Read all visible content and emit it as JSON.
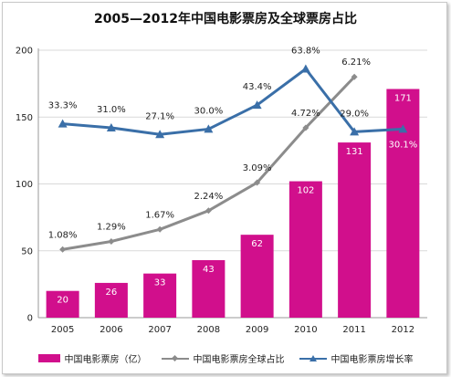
{
  "chart_data": {
    "type": "bar",
    "title": "2005—2012年中国电影票房及全球票房占比",
    "categories": [
      "2005",
      "2006",
      "2007",
      "2008",
      "2009",
      "2010",
      "2011",
      "2012"
    ],
    "ylim": [
      0,
      200
    ],
    "yticks": [
      "0",
      "50",
      "100",
      "150",
      "200"
    ],
    "grid": true,
    "legend_position": "bottom",
    "series": [
      {
        "name": "中国电影票房（亿）",
        "type": "bar",
        "color": "#d10f8c",
        "values": [
          20,
          26,
          33,
          43,
          62,
          102,
          131,
          171
        ],
        "labels": [
          "20",
          "26",
          "33",
          "43",
          "62",
          "102",
          "131",
          "171"
        ]
      },
      {
        "name": "中国电影票房全球占比",
        "type": "line",
        "marker": "diamond",
        "color": "#8c8c8c",
        "values": [
          51,
          57,
          66,
          80,
          101,
          142,
          180,
          null
        ],
        "labels": [
          "1.08%",
          "1.29%",
          "1.67%",
          "2.24%",
          "3.09%",
          "4.72%",
          "6.21%",
          ""
        ]
      },
      {
        "name": "中国电影票房增长率",
        "type": "line",
        "marker": "triangle",
        "color": "#3a6fa8",
        "values": [
          145,
          142,
          137,
          141,
          159,
          186,
          139,
          141
        ],
        "labels": [
          "33.3%",
          "31.0%",
          "27.1%",
          "30.0%",
          "43.4%",
          "63.8%",
          "29.0%",
          "30.1%"
        ]
      }
    ]
  }
}
